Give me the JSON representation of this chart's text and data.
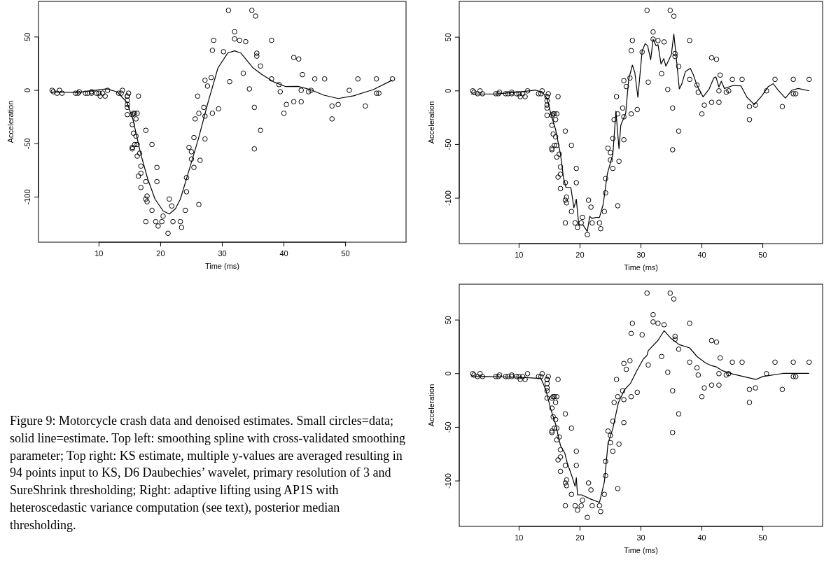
{
  "chart_data": [
    {
      "type": "scatter",
      "xlabel": "Time (ms)",
      "ylabel": "Acceleration",
      "xlim": [
        0.192,
        59.808
      ],
      "ylim": [
        -142.36,
        83.36
      ],
      "xticks": [
        10,
        20,
        30,
        40,
        50
      ],
      "yticks": [
        -100,
        -50,
        0,
        50
      ],
      "marker": "circle",
      "line_style": "solid",
      "annotations": [
        "Figure 9: Motorcycle crash data and denoised estimates. Small circles=data; solid line=estimate. Top left: smoothing spline with cross-validated smoothing parameter; Top right: KS estimate, multiple y-values are averaged resulting in 94 points input to KS, D6 Daubechies’ wavelet, primary resolution of 3 and SureShrink thresholding; Right: adaptive lifting using AP1S with heteroscedastic variance computation (see text), posterior median thresholding."
      ],
      "series": [
        {
          "type": "scatter",
          "color": "#000000",
          "x": [
            2.4,
            2.6,
            3.2,
            3.6,
            4.0,
            6.2,
            6.6,
            6.8,
            7.8,
            8.2,
            8.8,
            8.8,
            9.6,
            10.0,
            10.2,
            10.6,
            11.0,
            11.4,
            13.2,
            13.6,
            13.8,
            14.6,
            14.6,
            14.6,
            14.6,
            14.6,
            14.6,
            14.8,
            15.4,
            15.4,
            15.4,
            15.4,
            15.6,
            15.6,
            15.8,
            15.8,
            16.0,
            16.0,
            16.2,
            16.2,
            16.2,
            16.4,
            16.4,
            16.6,
            16.8,
            16.8,
            16.8,
            17.6,
            17.6,
            17.6,
            17.6,
            17.8,
            17.8,
            18.6,
            18.6,
            19.2,
            19.4,
            19.4,
            19.6,
            20.2,
            20.4,
            21.2,
            21.4,
            21.8,
            22.0,
            23.2,
            23.4,
            24.0,
            24.2,
            24.2,
            24.6,
            25.0,
            25.0,
            25.4,
            25.4,
            25.6,
            26.0,
            26.2,
            26.2,
            26.4,
            27.0,
            27.2,
            27.2,
            27.2,
            27.6,
            28.2,
            28.4,
            28.4,
            28.6,
            29.4,
            30.2,
            31.0,
            31.2,
            32.0,
            32.0,
            32.8,
            33.4,
            33.8,
            34.4,
            34.8,
            35.2,
            35.2,
            35.4,
            35.6,
            35.6,
            36.2,
            36.2,
            38.0,
            38.0,
            39.2,
            39.4,
            40.0,
            40.4,
            41.6,
            41.6,
            42.4,
            42.8,
            42.8,
            43.0,
            44.0,
            44.4,
            45.0,
            46.6,
            47.8,
            47.8,
            48.8,
            50.6,
            52.0,
            53.2,
            55.0,
            55.0,
            55.4,
            57.6
          ],
          "values": [
            0.0,
            -1.3,
            -2.7,
            0.0,
            -2.7,
            -2.7,
            -2.7,
            -1.3,
            -2.7,
            -2.7,
            -1.3,
            -2.7,
            -2.7,
            -2.7,
            -5.4,
            -2.7,
            -5.4,
            0.0,
            -2.7,
            -2.7,
            0.0,
            -13.3,
            -5.4,
            -5.4,
            -9.3,
            -16.0,
            -22.8,
            -2.7,
            -22.8,
            -32.1,
            -53.5,
            -54.9,
            -40.2,
            -21.5,
            -21.5,
            -50.8,
            -42.9,
            -26.8,
            -21.5,
            -50.8,
            -61.7,
            -5.4,
            -80.4,
            -59.0,
            -71.0,
            -91.1,
            -77.7,
            -37.5,
            -85.6,
            -123.1,
            -101.9,
            -99.1,
            -104.4,
            -112.5,
            -50.8,
            -123.1,
            -85.6,
            -72.3,
            -127.2,
            -123.1,
            -117.9,
            -134.0,
            -101.9,
            -108.4,
            -123.1,
            -123.1,
            -128.5,
            -112.5,
            -95.1,
            -81.8,
            -53.5,
            -64.4,
            -57.6,
            -72.3,
            -44.3,
            -26.8,
            -5.4,
            -107.1,
            -21.5,
            -65.6,
            -16.0,
            -45.6,
            -24.2,
            9.5,
            4.0,
            12.0,
            -21.5,
            37.5,
            46.9,
            -17.4,
            36.2,
            75.0,
            8.1,
            54.9,
            48.2,
            46.9,
            16.0,
            45.6,
            1.3,
            75.0,
            -16.0,
            -54.9,
            69.6,
            34.8,
            32.1,
            -37.5,
            22.8,
            46.9,
            10.7,
            5.4,
            -1.3,
            -21.5,
            -13.3,
            30.8,
            -10.7,
            29.4,
            0.0,
            -10.7,
            14.7,
            -1.3,
            0.0,
            10.7,
            10.7,
            -26.8,
            -14.7,
            -13.3,
            0.0,
            10.7,
            -14.7,
            -2.7,
            10.7,
            -2.7,
            10.7
          ]
        },
        {
          "type": "line",
          "color": "#000000",
          "marker": "none",
          "x": [
            2.3,
            6.5,
            11.3,
            13.0,
            14.5,
            15.5,
            16.7,
            17.9,
            19.1,
            20.4,
            21.4,
            22.4,
            23.2,
            24.4,
            26.1,
            27.7,
            29.3,
            30.9,
            32.0,
            33.0,
            35.0,
            36.4,
            38.3,
            40.3,
            42.3,
            44.3,
            46.4,
            48.8,
            51.3,
            54.5,
            57.6
          ],
          "values": [
            -1.6,
            -2,
            1.4,
            -1.6,
            -11,
            -27,
            -58,
            -83,
            -102,
            -113,
            -116,
            -111,
            -102,
            -79,
            -46,
            -11,
            21,
            35,
            37,
            35,
            21,
            15,
            8,
            3.5,
            3.7,
            0.7,
            -4.4,
            -7.7,
            -5.1,
            0.7,
            9.6
          ]
        }
      ]
    },
    {
      "type": "scatter",
      "xlabel": "Time (ms)",
      "ylabel": "Acceleration",
      "xlim": [
        0.192,
        59.808
      ],
      "ylim": [
        -142.36,
        83.36
      ],
      "xticks": [
        10,
        20,
        30,
        40,
        50
      ],
      "yticks": [
        -100,
        -50,
        0,
        50
      ],
      "marker": "circle",
      "line_style": "solid",
      "series": [
        {
          "type": "scatter",
          "color": "#000000",
          "x": [
            2.4,
            2.6,
            3.2,
            3.6,
            4.0,
            6.2,
            6.6,
            6.8,
            7.8,
            8.2,
            8.8,
            8.8,
            9.6,
            10.0,
            10.2,
            10.6,
            11.0,
            11.4,
            13.2,
            13.6,
            13.8,
            14.6,
            14.6,
            14.6,
            14.6,
            14.6,
            14.6,
            14.8,
            15.4,
            15.4,
            15.4,
            15.4,
            15.6,
            15.6,
            15.8,
            15.8,
            16.0,
            16.0,
            16.2,
            16.2,
            16.2,
            16.4,
            16.4,
            16.6,
            16.8,
            16.8,
            16.8,
            17.6,
            17.6,
            17.6,
            17.6,
            17.8,
            17.8,
            18.6,
            18.6,
            19.2,
            19.4,
            19.4,
            19.6,
            20.2,
            20.4,
            21.2,
            21.4,
            21.8,
            22.0,
            23.2,
            23.4,
            24.0,
            24.2,
            24.2,
            24.6,
            25.0,
            25.0,
            25.4,
            25.4,
            25.6,
            26.0,
            26.2,
            26.2,
            26.4,
            27.0,
            27.2,
            27.2,
            27.2,
            27.6,
            28.2,
            28.4,
            28.4,
            28.6,
            29.4,
            30.2,
            31.0,
            31.2,
            32.0,
            32.0,
            32.8,
            33.4,
            33.8,
            34.4,
            34.8,
            35.2,
            35.2,
            35.4,
            35.6,
            35.6,
            36.2,
            36.2,
            38.0,
            38.0,
            39.2,
            39.4,
            40.0,
            40.4,
            41.6,
            41.6,
            42.4,
            42.8,
            42.8,
            43.0,
            44.0,
            44.4,
            45.0,
            46.6,
            47.8,
            47.8,
            48.8,
            50.6,
            52.0,
            53.2,
            55.0,
            55.0,
            55.4,
            57.6
          ],
          "values": [
            0.0,
            -1.3,
            -2.7,
            0.0,
            -2.7,
            -2.7,
            -2.7,
            -1.3,
            -2.7,
            -2.7,
            -1.3,
            -2.7,
            -2.7,
            -2.7,
            -5.4,
            -2.7,
            -5.4,
            0.0,
            -2.7,
            -2.7,
            0.0,
            -13.3,
            -5.4,
            -5.4,
            -9.3,
            -16.0,
            -22.8,
            -2.7,
            -22.8,
            -32.1,
            -53.5,
            -54.9,
            -40.2,
            -21.5,
            -21.5,
            -50.8,
            -42.9,
            -26.8,
            -21.5,
            -50.8,
            -61.7,
            -5.4,
            -80.4,
            -59.0,
            -71.0,
            -91.1,
            -77.7,
            -37.5,
            -85.6,
            -123.1,
            -101.9,
            -99.1,
            -104.4,
            -112.5,
            -50.8,
            -123.1,
            -85.6,
            -72.3,
            -127.2,
            -123.1,
            -117.9,
            -134.0,
            -101.9,
            -108.4,
            -123.1,
            -123.1,
            -128.5,
            -112.5,
            -95.1,
            -81.8,
            -53.5,
            -64.4,
            -57.6,
            -72.3,
            -44.3,
            -26.8,
            -5.4,
            -107.1,
            -21.5,
            -65.6,
            -16.0,
            -45.6,
            -24.2,
            9.5,
            4.0,
            12.0,
            -21.5,
            37.5,
            46.9,
            -17.4,
            36.2,
            75.0,
            8.1,
            54.9,
            48.2,
            46.9,
            16.0,
            45.6,
            1.3,
            75.0,
            -16.0,
            -54.9,
            69.6,
            34.8,
            32.1,
            -37.5,
            22.8,
            46.9,
            10.7,
            5.4,
            -1.3,
            -21.5,
            -13.3,
            30.8,
            -10.7,
            29.4,
            0.0,
            -10.7,
            14.7,
            -1.3,
            0.0,
            10.7,
            10.7,
            -26.8,
            -14.7,
            -13.3,
            0.0,
            10.7,
            -14.7,
            -2.7,
            10.7,
            -2.7,
            10.7
          ]
        },
        {
          "type": "line",
          "color": "#000000",
          "marker": "none",
          "x": [
            2.1,
            6.2,
            10.1,
            12.7,
            13.8,
            14.6,
            15.2,
            16.0,
            16.8,
            17.3,
            17.7,
            18.5,
            19.0,
            19.4,
            19.8,
            20.5,
            21.2,
            21.6,
            22.0,
            22.6,
            23.2,
            23.8,
            24.5,
            25.4,
            25.9,
            26.4,
            26.7,
            27.5,
            28.0,
            28.6,
            29.0,
            29.5,
            30.2,
            30.7,
            31.1,
            31.6,
            32.0,
            32.5,
            32.8,
            33.3,
            33.75,
            34.1,
            35.0,
            35.4,
            35.8,
            36.3,
            36.7,
            37.3,
            38.1,
            38.6,
            39.2,
            40.2,
            41.2,
            41.95,
            42.3,
            42.8,
            43.2,
            43.7,
            45.1,
            46.4,
            47.4,
            48.6,
            49.8,
            50.9,
            51.7,
            52.5,
            53.7,
            54.8,
            55.8,
            57.6
          ],
          "values": [
            -2.9,
            -2.9,
            -1.1,
            0.7,
            -1.1,
            -7,
            -21,
            -36,
            -59,
            -81,
            -90,
            -90,
            -109,
            -101,
            -125,
            -125,
            -131,
            -117,
            -119,
            -118,
            -118,
            -106,
            -77,
            -59,
            -19,
            -54,
            -32,
            -21,
            11,
            24,
            17,
            -6,
            37,
            44,
            42,
            29,
            48,
            42,
            43,
            25,
            30,
            23,
            34,
            53,
            31,
            1.8,
            6.3,
            18,
            21,
            15,
            5,
            -5.6,
            1.8,
            12,
            13,
            3.6,
            9,
            2.2,
            4.9,
            4.7,
            -6,
            -12.8,
            -4.9,
            4,
            6.7,
            0.7,
            -6.7,
            0.7,
            2.2,
            0
          ]
        }
      ]
    },
    {
      "type": "scatter",
      "xlabel": "Time (ms)",
      "ylabel": "Acceleration",
      "xlim": [
        0.192,
        59.808
      ],
      "ylim": [
        -142.36,
        83.36
      ],
      "xticks": [
        10,
        20,
        30,
        40,
        50
      ],
      "yticks": [
        -100,
        -50,
        0,
        50
      ],
      "marker": "circle",
      "line_style": "solid",
      "series": [
        {
          "type": "scatter",
          "color": "#000000",
          "x": [
            2.4,
            2.6,
            3.2,
            3.6,
            4.0,
            6.2,
            6.6,
            6.8,
            7.8,
            8.2,
            8.8,
            8.8,
            9.6,
            10.0,
            10.2,
            10.6,
            11.0,
            11.4,
            13.2,
            13.6,
            13.8,
            14.6,
            14.6,
            14.6,
            14.6,
            14.6,
            14.6,
            14.8,
            15.4,
            15.4,
            15.4,
            15.4,
            15.6,
            15.6,
            15.8,
            15.8,
            16.0,
            16.0,
            16.2,
            16.2,
            16.2,
            16.4,
            16.4,
            16.6,
            16.8,
            16.8,
            16.8,
            17.6,
            17.6,
            17.6,
            17.6,
            17.8,
            17.8,
            18.6,
            18.6,
            19.2,
            19.4,
            19.4,
            19.6,
            20.2,
            20.4,
            21.2,
            21.4,
            21.8,
            22.0,
            23.2,
            23.4,
            24.0,
            24.2,
            24.2,
            24.6,
            25.0,
            25.0,
            25.4,
            25.4,
            25.6,
            26.0,
            26.2,
            26.2,
            26.4,
            27.0,
            27.2,
            27.2,
            27.2,
            27.6,
            28.2,
            28.4,
            28.4,
            28.6,
            29.4,
            30.2,
            31.0,
            31.2,
            32.0,
            32.0,
            32.8,
            33.4,
            33.8,
            34.4,
            34.8,
            35.2,
            35.2,
            35.4,
            35.6,
            35.6,
            36.2,
            36.2,
            38.0,
            38.0,
            39.2,
            39.4,
            40.0,
            40.4,
            41.6,
            41.6,
            42.4,
            42.8,
            42.8,
            43.0,
            44.0,
            44.4,
            45.0,
            46.6,
            47.8,
            47.8,
            48.8,
            50.6,
            52.0,
            53.2,
            55.0,
            55.0,
            55.4,
            57.6
          ],
          "values": [
            0.0,
            -1.3,
            -2.7,
            0.0,
            -2.7,
            -2.7,
            -2.7,
            -1.3,
            -2.7,
            -2.7,
            -1.3,
            -2.7,
            -2.7,
            -2.7,
            -5.4,
            -2.7,
            -5.4,
            0.0,
            -2.7,
            -2.7,
            0.0,
            -13.3,
            -5.4,
            -5.4,
            -9.3,
            -16.0,
            -22.8,
            -2.7,
            -22.8,
            -32.1,
            -53.5,
            -54.9,
            -40.2,
            -21.5,
            -21.5,
            -50.8,
            -42.9,
            -26.8,
            -21.5,
            -50.8,
            -61.7,
            -5.4,
            -80.4,
            -59.0,
            -71.0,
            -91.1,
            -77.7,
            -37.5,
            -85.6,
            -123.1,
            -101.9,
            -99.1,
            -104.4,
            -112.5,
            -50.8,
            -123.1,
            -85.6,
            -72.3,
            -127.2,
            -123.1,
            -117.9,
            -134.0,
            -101.9,
            -108.4,
            -123.1,
            -123.1,
            -128.5,
            -112.5,
            -95.1,
            -81.8,
            -53.5,
            -64.4,
            -57.6,
            -72.3,
            -44.3,
            -26.8,
            -5.4,
            -107.1,
            -21.5,
            -65.6,
            -16.0,
            -45.6,
            -24.2,
            9.5,
            4.0,
            12.0,
            -21.5,
            37.5,
            46.9,
            -17.4,
            36.2,
            75.0,
            8.1,
            54.9,
            48.2,
            46.9,
            16.0,
            45.6,
            1.3,
            75.0,
            -16.0,
            -54.9,
            69.6,
            34.8,
            32.1,
            -37.5,
            22.8,
            46.9,
            10.7,
            5.4,
            -1.3,
            -21.5,
            -13.3,
            30.8,
            -10.7,
            29.4,
            0.0,
            -10.7,
            14.7,
            -1.3,
            0.0,
            10.7,
            10.7,
            -26.8,
            -14.7,
            -13.3,
            0.0,
            10.7,
            -14.7,
            -2.7,
            10.7,
            -2.7,
            10.7
          ]
        },
        {
          "type": "line",
          "color": "#000000",
          "marker": "none",
          "x": [
            2.1,
            4.3,
            10.1,
            13.6,
            14.4,
            15.2,
            16.0,
            16.8,
            17.5,
            17.9,
            18.7,
            19.2,
            19.4,
            19.6,
            20.3,
            21.8,
            23.2,
            24.0,
            24.6,
            25.4,
            26.3,
            27.3,
            28.3,
            29.3,
            30.4,
            31.0,
            31.2,
            32.8,
            33.8,
            34.9,
            36.3,
            38.0,
            39.2,
            40.6,
            41.6,
            42.3,
            43.3,
            45.1,
            46.8,
            48.9,
            50.0,
            53.3,
            57.6
          ],
          "values": [
            -2.9,
            -2.7,
            -3.4,
            -4.5,
            -15,
            -33,
            -47,
            -67,
            -74,
            -83,
            -96,
            -105,
            -97,
            -113,
            -113,
            -117,
            -120,
            -101,
            -65,
            -51,
            -27,
            -15,
            -9,
            2.5,
            13.7,
            17,
            21.5,
            31,
            40,
            33,
            27,
            24,
            16,
            10,
            7.4,
            6.5,
            2.9,
            -0.4,
            -2.7,
            -5.4,
            -2.7,
            0.2,
            0.2
          ]
        }
      ]
    }
  ]
}
